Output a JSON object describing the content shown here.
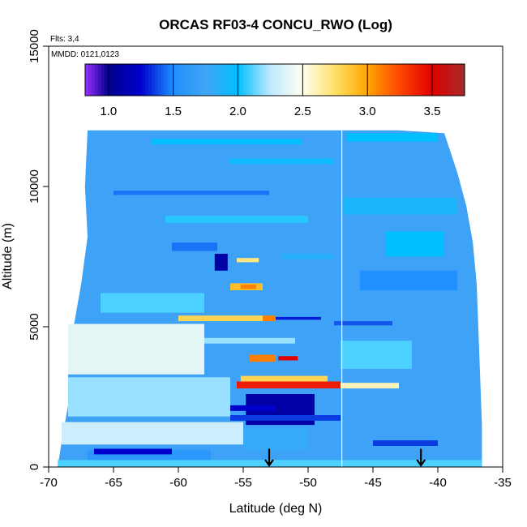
{
  "chart_data": {
    "type": "heatmap",
    "title": "ORCAS RF03-4 CONCU_RWO (Log)",
    "xlabel": "Latitude (deg N)",
    "ylabel": "Altitude (m)",
    "xlim": [
      -70,
      -35
    ],
    "ylim": [
      0,
      15000
    ],
    "x_ticks": [
      -70,
      -65,
      -60,
      -55,
      -50,
      -45,
      -40,
      -35
    ],
    "x_tick_labels": [
      "-70",
      "-65",
      "-60",
      "-55",
      "-50",
      "-45",
      "-40",
      "-35"
    ],
    "y_ticks": [
      0,
      5000,
      10000,
      15000
    ],
    "y_tick_labels": [
      "0",
      "5000",
      "10000",
      "15000"
    ],
    "notes": {
      "flights": "Flts: 3,4",
      "dates": "MMDD: 0121,0123"
    },
    "colorbar": {
      "range": [
        0.82,
        3.75
      ],
      "ticks": [
        1.0,
        1.5,
        2.0,
        2.5,
        3.0,
        3.5
      ],
      "tick_labels": [
        "1.0",
        "1.5",
        "2.0",
        "2.5",
        "3.0",
        "3.5"
      ],
      "stops": [
        [
          0.82,
          "#9b30ff"
        ],
        [
          1.0,
          "#00008b"
        ],
        [
          1.25,
          "#0000cd"
        ],
        [
          1.5,
          "#1e90ff"
        ],
        [
          1.75,
          "#42a5f5"
        ],
        [
          2.0,
          "#00bfff"
        ],
        [
          2.25,
          "#bfe9ff"
        ],
        [
          2.5,
          "#fffff0"
        ],
        [
          2.75,
          "#ffe066"
        ],
        [
          3.0,
          "#ffa500"
        ],
        [
          3.25,
          "#ff4500"
        ],
        [
          3.5,
          "#e00000"
        ],
        [
          3.75,
          "#a52a2a"
        ]
      ]
    },
    "vertical_line_x": -47.4,
    "arrows_x": [
      -53.0,
      -41.3
    ],
    "background_value": 1.72,
    "bands": [
      {
        "x": [
          -69.3,
          -36.6
        ],
        "y": [
          0,
          250
        ],
        "v": 2.1
      },
      {
        "x": [
          -67.0,
          -57.5
        ],
        "y": [
          250,
          600
        ],
        "v": 1.6
      },
      {
        "x": [
          -66.5,
          -60.5
        ],
        "y": [
          450,
          650
        ],
        "v": 1.25
      },
      {
        "x": [
          -45.0,
          -40.0
        ],
        "y": [
          750,
          950
        ],
        "v": 1.35
      },
      {
        "x": [
          -69.0,
          -55.0
        ],
        "y": [
          800,
          1600
        ],
        "v": 2.3
      },
      {
        "x": [
          -55.0,
          -50.0
        ],
        "y": [
          600,
          1400
        ],
        "v": 1.8
      },
      {
        "x": [
          -54.8,
          -49.5
        ],
        "y": [
          1500,
          2600
        ],
        "v": 1.1
      },
      {
        "x": [
          -56.0,
          -47.5
        ],
        "y": [
          1650,
          1850
        ],
        "v": 1.35
      },
      {
        "x": [
          -57.0,
          -52.5
        ],
        "y": [
          2000,
          2200
        ],
        "v": 1.25
      },
      {
        "x": [
          -68.5,
          -56.0
        ],
        "y": [
          1800,
          3200
        ],
        "v": 2.2
      },
      {
        "x": [
          -55.5,
          -47.5
        ],
        "y": [
          2800,
          3050
        ],
        "v": 3.4
      },
      {
        "x": [
          -55.2,
          -48.5
        ],
        "y": [
          3050,
          3250
        ],
        "v": 2.8
      },
      {
        "x": [
          -47.5,
          -43.0
        ],
        "y": [
          2800,
          3000
        ],
        "v": 2.6
      },
      {
        "x": [
          -54.5,
          -52.5
        ],
        "y": [
          3750,
          4000
        ],
        "v": 3.1
      },
      {
        "x": [
          -52.3,
          -50.8
        ],
        "y": [
          3800,
          3950
        ],
        "v": 3.5
      },
      {
        "x": [
          -68.5,
          -58.0
        ],
        "y": [
          3300,
          5100
        ],
        "v": 2.4
      },
      {
        "x": [
          -58.0,
          -51.0
        ],
        "y": [
          4400,
          4600
        ],
        "v": 2.2
      },
      {
        "x": [
          -47.5,
          -42.0
        ],
        "y": [
          3500,
          4500
        ],
        "v": 2.1
      },
      {
        "x": [
          -60.0,
          -53.5
        ],
        "y": [
          5200,
          5400
        ],
        "v": 2.8
      },
      {
        "x": [
          -53.5,
          -52.5
        ],
        "y": [
          5200,
          5400
        ],
        "v": 3.1
      },
      {
        "x": [
          -52.5,
          -49.0
        ],
        "y": [
          5250,
          5350
        ],
        "v": 1.3
      },
      {
        "x": [
          -48.0,
          -43.5
        ],
        "y": [
          5050,
          5200
        ],
        "v": 1.4
      },
      {
        "x": [
          -66.0,
          -58.0
        ],
        "y": [
          5500,
          6200
        ],
        "v": 2.1
      },
      {
        "x": [
          -56.0,
          -53.5
        ],
        "y": [
          6300,
          6550
        ],
        "v": 2.9
      },
      {
        "x": [
          -55.2,
          -54.0
        ],
        "y": [
          6350,
          6500
        ],
        "v": 3.1
      },
      {
        "x": [
          -46.0,
          -38.5
        ],
        "y": [
          6300,
          7000
        ],
        "v": 1.5
      },
      {
        "x": [
          -57.2,
          -56.2
        ],
        "y": [
          7000,
          7600
        ],
        "v": 1.1
      },
      {
        "x": [
          -55.5,
          -53.8
        ],
        "y": [
          7300,
          7450
        ],
        "v": 2.7
      },
      {
        "x": [
          -52.0,
          -48.0
        ],
        "y": [
          7400,
          7600
        ],
        "v": 1.85
      },
      {
        "x": [
          -60.5,
          -57.0
        ],
        "y": [
          7700,
          8000
        ],
        "v": 1.45
      },
      {
        "x": [
          -44.0,
          -39.5
        ],
        "y": [
          7500,
          8400
        ],
        "v": 2.0
      },
      {
        "x": [
          -61.0,
          -50.0
        ],
        "y": [
          8700,
          8950
        ],
        "v": 2.05
      },
      {
        "x": [
          -47.3,
          -38.5
        ],
        "y": [
          9000,
          9600
        ],
        "v": 1.9
      },
      {
        "x": [
          -65.0,
          -53.0
        ],
        "y": [
          9700,
          9850
        ],
        "v": 1.45
      },
      {
        "x": [
          -62.0,
          -50.5
        ],
        "y": [
          11500,
          11700
        ],
        "v": 2.0
      },
      {
        "x": [
          -56.0,
          -48.0
        ],
        "y": [
          10800,
          11000
        ],
        "v": 1.95
      },
      {
        "x": [
          -47.0,
          -40.0
        ],
        "y": [
          11600,
          11900
        ],
        "v": 2.0
      }
    ]
  }
}
